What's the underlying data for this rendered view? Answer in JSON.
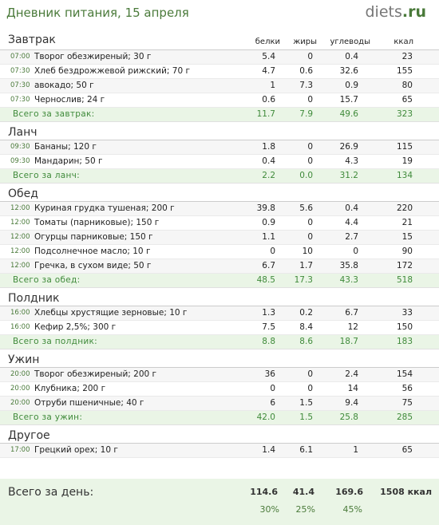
{
  "header": {
    "title": "Дневник питания, 15 апреля",
    "logo_main": "diets",
    "logo_suffix": ".ru"
  },
  "columns": {
    "protein": "белки",
    "fat": "жиры",
    "carbs": "углеводы",
    "kcal": "ккал"
  },
  "sections": [
    {
      "name": "Завтрак",
      "rows": [
        {
          "time": "07:00",
          "food": "Творог обезжиреный; 30 г",
          "p": "5.4",
          "f": "0",
          "c": "0.4",
          "k": "23"
        },
        {
          "time": "07:30",
          "food": "Хлеб бездрожжевой рижский; 70 г",
          "p": "4.7",
          "f": "0.6",
          "c": "32.6",
          "k": "155"
        },
        {
          "time": "07:30",
          "food": "авокадо; 50 г",
          "p": "1",
          "f": "7.3",
          "c": "0.9",
          "k": "80"
        },
        {
          "time": "07:30",
          "food": "Чернослив; 24 г",
          "p": "0.6",
          "f": "0",
          "c": "15.7",
          "k": "65"
        }
      ],
      "total": {
        "label": "Всего за завтрак:",
        "p": "11.7",
        "f": "7.9",
        "c": "49.6",
        "k": "323"
      }
    },
    {
      "name": "Ланч",
      "rows": [
        {
          "time": "09:30",
          "food": "Бананы; 120 г",
          "p": "1.8",
          "f": "0",
          "c": "26.9",
          "k": "115"
        },
        {
          "time": "09:30",
          "food": "Мандарин; 50 г",
          "p": "0.4",
          "f": "0",
          "c": "4.3",
          "k": "19"
        }
      ],
      "total": {
        "label": "Всего за ланч:",
        "p": "2.2",
        "f": "0.0",
        "c": "31.2",
        "k": "134"
      }
    },
    {
      "name": "Обед",
      "rows": [
        {
          "time": "12:00",
          "food": "Куриная грудка тушеная; 200 г",
          "p": "39.8",
          "f": "5.6",
          "c": "0.4",
          "k": "220"
        },
        {
          "time": "12:00",
          "food": "Томаты (парниковые); 150 г",
          "p": "0.9",
          "f": "0",
          "c": "4.4",
          "k": "21"
        },
        {
          "time": "12:00",
          "food": "Огурцы парниковые; 150 г",
          "p": "1.1",
          "f": "0",
          "c": "2.7",
          "k": "15"
        },
        {
          "time": "12:00",
          "food": "Подсолнечное масло; 10 г",
          "p": "0",
          "f": "10",
          "c": "0",
          "k": "90"
        },
        {
          "time": "12:00",
          "food": "Гречка, в сухом виде; 50 г",
          "p": "6.7",
          "f": "1.7",
          "c": "35.8",
          "k": "172"
        }
      ],
      "total": {
        "label": "Всего за обед:",
        "p": "48.5",
        "f": "17.3",
        "c": "43.3",
        "k": "518"
      }
    },
    {
      "name": "Полдник",
      "rows": [
        {
          "time": "16:00",
          "food": "Хлебцы хрустящие зерновые; 10 г",
          "p": "1.3",
          "f": "0.2",
          "c": "6.7",
          "k": "33"
        },
        {
          "time": "16:00",
          "food": "Кефир 2,5%; 300 г",
          "p": "7.5",
          "f": "8.4",
          "c": "12",
          "k": "150"
        }
      ],
      "total": {
        "label": "Всего за полдник:",
        "p": "8.8",
        "f": "8.6",
        "c": "18.7",
        "k": "183"
      }
    },
    {
      "name": "Ужин",
      "rows": [
        {
          "time": "20:00",
          "food": "Творог обезжиреный; 200 г",
          "p": "36",
          "f": "0",
          "c": "2.4",
          "k": "154"
        },
        {
          "time": "20:00",
          "food": "Клубника; 200 г",
          "p": "0",
          "f": "0",
          "c": "14",
          "k": "56"
        },
        {
          "time": "20:00",
          "food": "Отруби пшеничные; 40 г",
          "p": "6",
          "f": "1.5",
          "c": "9.4",
          "k": "75"
        }
      ],
      "total": {
        "label": "Всего за ужин:",
        "p": "42.0",
        "f": "1.5",
        "c": "25.8",
        "k": "285"
      }
    },
    {
      "name": "Другое",
      "rows": [
        {
          "time": "17:00",
          "food": "Грецкий орех; 10 г",
          "p": "1.4",
          "f": "6.1",
          "c": "1",
          "k": "65"
        }
      ],
      "total": null
    }
  ],
  "day_total": {
    "label": "Всего за день:",
    "p": "114.6",
    "f": "41.4",
    "c": "169.6",
    "k": "1508 ккал",
    "pp": "30%",
    "fp": "25%",
    "cp": "45%"
  }
}
